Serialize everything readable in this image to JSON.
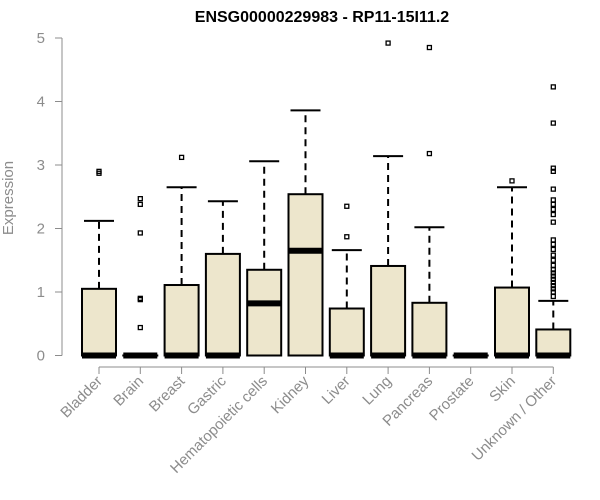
{
  "chart_data": {
    "type": "boxplot",
    "title": "ENSG00000229983 - RP11-15I11.2",
    "ylabel": "Expression",
    "xlabel": "",
    "ylim": [
      0,
      5
    ],
    "yticks": [
      0,
      1,
      2,
      3,
      4,
      5
    ],
    "grid": false,
    "box_fill": "#ede6cc",
    "categories": [
      "Bladder",
      "Brain",
      "Breast",
      "Gastric",
      "Hematopoietic cells",
      "Kidney",
      "Liver",
      "Lung",
      "Pancreas",
      "Prostate",
      "Skin",
      "Unknown / Other"
    ],
    "boxes": [
      {
        "q1": 0,
        "median": 0,
        "q3": 1.05,
        "whisker_low": 0,
        "whisker_high": 2.12,
        "outliers": [
          2.87,
          2.9
        ]
      },
      {
        "q1": 0,
        "median": 0,
        "q3": 0,
        "whisker_low": 0,
        "whisker_high": 0,
        "outliers": [
          0.44,
          0.88,
          0.9,
          1.93,
          2.38,
          2.47
        ]
      },
      {
        "q1": 0,
        "median": 0,
        "q3": 1.11,
        "whisker_low": 0,
        "whisker_high": 2.65,
        "outliers": [
          3.12
        ]
      },
      {
        "q1": 0,
        "median": 0,
        "q3": 1.6,
        "whisker_low": 0,
        "whisker_high": 2.43,
        "outliers": []
      },
      {
        "q1": 0,
        "median": 0.82,
        "q3": 1.35,
        "whisker_low": 0,
        "whisker_high": 3.06,
        "outliers": []
      },
      {
        "q1": 0,
        "median": 1.65,
        "q3": 2.54,
        "whisker_low": 0,
        "whisker_high": 3.86,
        "outliers": []
      },
      {
        "q1": 0,
        "median": 0,
        "q3": 0.74,
        "whisker_low": 0,
        "whisker_high": 1.66,
        "outliers": [
          1.87,
          2.35
        ]
      },
      {
        "q1": 0,
        "median": 0,
        "q3": 1.41,
        "whisker_low": 0,
        "whisker_high": 3.14,
        "outliers": [
          4.92
        ]
      },
      {
        "q1": 0,
        "median": 0,
        "q3": 0.83,
        "whisker_low": 0,
        "whisker_high": 2.02,
        "outliers": [
          3.18,
          4.85
        ]
      },
      {
        "q1": 0,
        "median": 0,
        "q3": 0,
        "whisker_low": 0,
        "whisker_high": 0,
        "outliers": []
      },
      {
        "q1": 0,
        "median": 0,
        "q3": 1.07,
        "whisker_low": 0,
        "whisker_high": 2.65,
        "outliers": [
          2.75
        ]
      },
      {
        "q1": 0,
        "median": 0,
        "q3": 0.41,
        "whisker_low": 0,
        "whisker_high": 0.86,
        "outliers": [
          0.93,
          1.0,
          1.05,
          1.1,
          1.15,
          1.2,
          1.25,
          1.3,
          1.35,
          1.42,
          1.5,
          1.58,
          1.67,
          1.75,
          1.82,
          2.1,
          2.22,
          2.3,
          2.38,
          2.45,
          2.62,
          2.9,
          2.95,
          3.66,
          4.23
        ]
      }
    ]
  }
}
